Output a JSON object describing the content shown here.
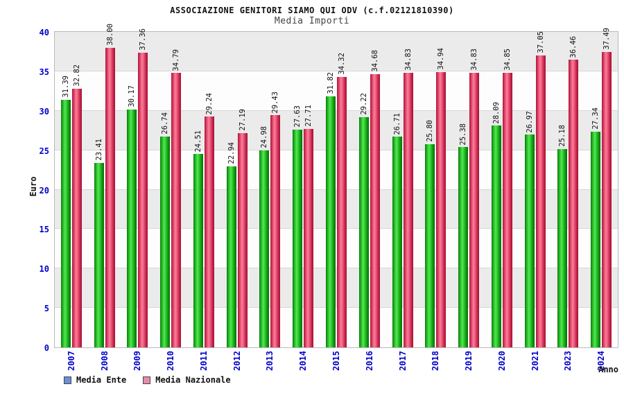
{
  "chart_data": {
    "type": "bar",
    "title": "ASSOCIAZIONE GENITORI SIAMO QUI ODV (c.f.02121810390)",
    "subtitle": "Media Importi",
    "xlabel": "Anno",
    "ylabel": "Euro",
    "ylim": [
      0,
      40
    ],
    "ytick_step": 5,
    "grid": "horizontal-bands-alternating",
    "legend_position": "bottom-left",
    "axis_text_color": "#0000cc",
    "value_label_decimals": 2,
    "categories": [
      "2007",
      "2008",
      "2009",
      "2010",
      "2011",
      "2012",
      "2013",
      "2014",
      "2015",
      "2016",
      "2017",
      "2018",
      "2019",
      "2020",
      "2021",
      "2023",
      "2024"
    ],
    "series": [
      {
        "name": "Media Ente",
        "bar_color": "#2ecc2e",
        "legend_color": "#6d8fd4",
        "values": [
          31.39,
          23.41,
          30.17,
          26.74,
          24.51,
          22.94,
          24.98,
          27.63,
          31.82,
          29.22,
          26.71,
          25.8,
          25.38,
          28.09,
          26.97,
          25.18,
          27.34
        ]
      },
      {
        "name": "Media Nazionale",
        "bar_color": "#ef5c7e",
        "legend_color": "#e98ba4",
        "values": [
          32.82,
          38.0,
          37.36,
          34.79,
          29.24,
          27.19,
          29.43,
          27.71,
          34.32,
          34.68,
          34.83,
          34.94,
          34.83,
          34.85,
          37.05,
          36.46,
          37.49
        ]
      }
    ]
  }
}
